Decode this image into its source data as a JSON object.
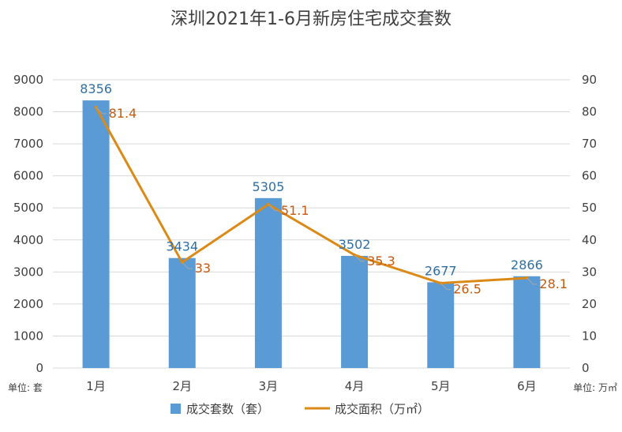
{
  "chart_data": {
    "type": "bar",
    "title": "深圳2021年1-6月新房住宅成交套数",
    "categories": [
      "1月",
      "2月",
      "3月",
      "4月",
      "5月",
      "6月"
    ],
    "series": [
      {
        "name": "成交套数（套）",
        "type": "bar",
        "axis": "left",
        "values": [
          8356,
          3434,
          5305,
          3502,
          2677,
          2866
        ]
      },
      {
        "name": "成交面积（万㎡）",
        "type": "line",
        "axis": "right",
        "values": [
          81.4,
          33,
          51.1,
          35.3,
          26.5,
          28.1
        ]
      }
    ],
    "left_axis": {
      "unit_label": "单位: 套",
      "ylim": [
        0,
        9000
      ],
      "ticks": [
        0,
        1000,
        2000,
        3000,
        4000,
        5000,
        6000,
        7000,
        8000,
        9000
      ]
    },
    "right_axis": {
      "unit_label": "单位: 万㎡",
      "ylim": [
        0,
        90
      ],
      "ticks": [
        0,
        10,
        20,
        30,
        40,
        50,
        60,
        70,
        80,
        90
      ]
    },
    "grid": true,
    "legend_position": "bottom",
    "colors": {
      "bar": "#5B9BD5",
      "line": "#DB8A17",
      "bar_label": "#2E6FA5",
      "line_label": "#C55A11",
      "grid": "#D9D9D9"
    }
  }
}
